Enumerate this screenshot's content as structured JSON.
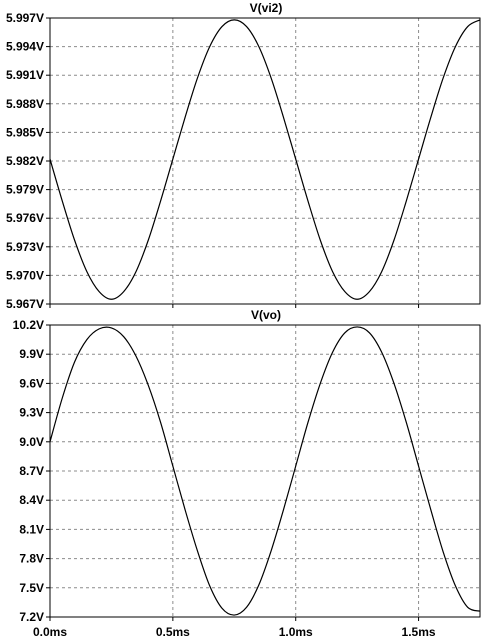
{
  "chart_data": [
    {
      "type": "line",
      "title": "V(vi2)",
      "xlabel": "",
      "ylabel": "",
      "xlim": [
        0,
        1.75
      ],
      "ylim": [
        5.967,
        5.997
      ],
      "yticks": [
        5.997,
        5.994,
        5.991,
        5.988,
        5.985,
        5.982,
        5.979,
        5.976,
        5.973,
        5.97,
        5.967
      ],
      "ytick_labels": [
        "5.997V",
        "5.994V",
        "5.991V",
        "5.988V",
        "5.985V",
        "5.982V",
        "5.979V",
        "5.976V",
        "5.973V",
        "5.970V",
        "5.967V"
      ],
      "grid": true,
      "series": [
        {
          "x": [
            0.0,
            0.05,
            0.1,
            0.15,
            0.2,
            0.25,
            0.3,
            0.35,
            0.4,
            0.45,
            0.5,
            0.55,
            0.6,
            0.65,
            0.7,
            0.75,
            0.8,
            0.85,
            0.9,
            0.95,
            1.0,
            1.05,
            1.1,
            1.15,
            1.2,
            1.25,
            1.3,
            1.35,
            1.4,
            1.45,
            1.5,
            1.55,
            1.6,
            1.65,
            1.7,
            1.75
          ],
          "y": [
            5.9822,
            5.9778,
            5.9737,
            5.9704,
            5.9683,
            5.9675,
            5.9683,
            5.9704,
            5.9737,
            5.9778,
            5.9822,
            5.9866,
            5.9907,
            5.994,
            5.9961,
            5.9968,
            5.9961,
            5.994,
            5.9907,
            5.9866,
            5.9822,
            5.9778,
            5.9737,
            5.9704,
            5.9683,
            5.9675,
            5.9683,
            5.9704,
            5.9737,
            5.9778,
            5.9822,
            5.9866,
            5.9907,
            5.994,
            5.9961,
            5.9968
          ]
        }
      ]
    },
    {
      "type": "line",
      "title": "V(vo)",
      "xlabel": "",
      "ylabel": "",
      "xlim": [
        0,
        1.75
      ],
      "ylim": [
        7.2,
        10.2
      ],
      "yticks": [
        10.2,
        9.9,
        9.6,
        9.3,
        9.0,
        8.7,
        8.4,
        8.1,
        7.8,
        7.5,
        7.2
      ],
      "ytick_labels": [
        "10.2V",
        "9.9V",
        "9.6V",
        "9.3V",
        "9.0V",
        "8.7V",
        "8.4V",
        "8.1V",
        "7.8V",
        "7.5V",
        "7.2V"
      ],
      "xticks": [
        0,
        0.5,
        1.0,
        1.5
      ],
      "xtick_labels": [
        "0.0ms",
        "0.5ms",
        "1.0ms",
        "1.5ms"
      ],
      "grid": true,
      "series": [
        {
          "x": [
            0.0,
            0.05,
            0.1,
            0.15,
            0.2,
            0.25,
            0.3,
            0.35,
            0.4,
            0.45,
            0.5,
            0.55,
            0.6,
            0.65,
            0.7,
            0.75,
            0.8,
            0.85,
            0.9,
            0.95,
            1.0,
            1.05,
            1.1,
            1.15,
            1.2,
            1.25,
            1.3,
            1.35,
            1.4,
            1.45,
            1.5,
            1.55,
            1.6,
            1.65,
            1.7,
            1.75
          ],
          "y": [
            9.0,
            9.45,
            9.82,
            10.05,
            10.16,
            10.17,
            10.08,
            9.88,
            9.58,
            9.2,
            8.75,
            8.3,
            7.88,
            7.52,
            7.29,
            7.22,
            7.3,
            7.53,
            7.88,
            8.3,
            8.75,
            9.2,
            9.6,
            9.92,
            10.12,
            10.18,
            10.12,
            9.92,
            9.6,
            9.2,
            8.75,
            8.3,
            7.87,
            7.52,
            7.3,
            7.26
          ]
        }
      ]
    }
  ]
}
